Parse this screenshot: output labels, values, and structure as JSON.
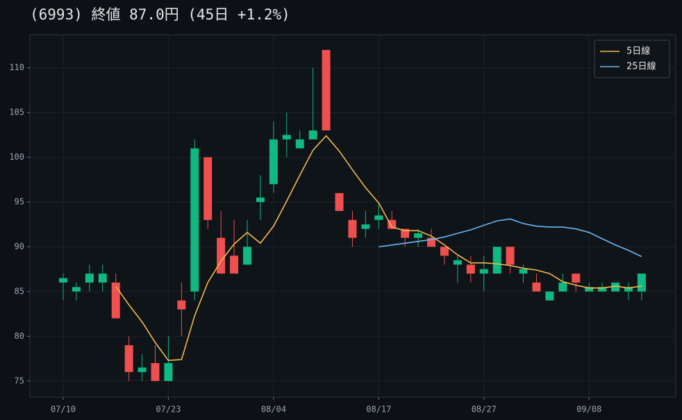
{
  "chart_data": {
    "type": "candlestick",
    "title": "(6993)  終値 87.0円  (45日 +1.2%)",
    "categories": [
      "07/10",
      null,
      null,
      null,
      null,
      null,
      null,
      null,
      "07/23",
      null,
      null,
      null,
      null,
      null,
      null,
      null,
      "08/04",
      null,
      null,
      null,
      null,
      null,
      null,
      null,
      "08/17",
      null,
      null,
      null,
      null,
      null,
      null,
      null,
      "08/27",
      null,
      null,
      null,
      null,
      null,
      null,
      null,
      "09/08",
      null,
      null,
      null,
      null
    ],
    "open": [
      86,
      85,
      86,
      86,
      86,
      79,
      76,
      77,
      75,
      84,
      85,
      100,
      91,
      89,
      88,
      95,
      97,
      102,
      101,
      102,
      112,
      96,
      93,
      92,
      93,
      93,
      92,
      91,
      91,
      90,
      88,
      88,
      87,
      87,
      90,
      87,
      86,
      84,
      85,
      87,
      85,
      85,
      85,
      85,
      85
    ],
    "high": [
      87,
      86,
      88,
      88,
      87,
      80,
      78,
      79,
      80,
      86,
      102,
      100,
      94,
      93,
      93,
      98,
      104,
      105,
      103,
      110,
      112,
      96,
      94,
      94,
      95,
      94,
      92,
      92,
      92,
      90,
      89,
      89,
      89,
      90,
      90,
      88,
      87,
      85,
      87,
      87,
      86,
      86,
      86,
      86,
      87
    ],
    "low": [
      84,
      84,
      85,
      85,
      82,
      75,
      75,
      75,
      75,
      80,
      84,
      92,
      87,
      87,
      88,
      93,
      96,
      100,
      101,
      102,
      103,
      94,
      90,
      91,
      92,
      92,
      90,
      90,
      90,
      88,
      86,
      86,
      85,
      87,
      87,
      86,
      85,
      84,
      85,
      85,
      85,
      85,
      85,
      84,
      84
    ],
    "close": [
      86.5,
      85.5,
      87,
      87,
      82,
      76,
      76.5,
      75,
      77,
      83,
      101,
      93,
      87,
      87,
      90,
      95.5,
      102,
      102.5,
      102,
      103,
      103,
      94,
      91,
      92.5,
      93.5,
      92,
      91,
      91.5,
      90,
      89,
      88.5,
      87,
      87.5,
      90,
      88,
      87.5,
      85,
      85,
      86,
      86,
      85.5,
      85.5,
      86,
      85.5,
      87
    ],
    "up_color": "#10b981",
    "down_color": "#ef4f4f",
    "series": [
      {
        "name": "5日線",
        "color": "#f5b94f",
        "values": [
          null,
          null,
          null,
          null,
          85.6,
          83.5,
          81.6,
          79.3,
          77.3,
          77.4,
          82.3,
          86,
          88.4,
          90.3,
          91.6,
          90.4,
          92.3,
          95.1,
          98,
          100.8,
          102.4,
          100.7,
          98.6,
          96.6,
          94.9,
          92.2,
          91.8,
          91.8,
          91.2,
          90.2,
          89.1,
          88.2,
          88.2,
          88.1,
          87.9,
          87.6,
          87.4,
          87,
          86.1,
          85.7,
          85.4,
          85.4,
          85.6,
          85.4,
          85.6
        ]
      },
      {
        "name": "25日線",
        "color": "#6cb6f2",
        "values": [
          null,
          null,
          null,
          null,
          null,
          null,
          null,
          null,
          null,
          null,
          null,
          null,
          null,
          null,
          null,
          null,
          null,
          null,
          null,
          null,
          null,
          null,
          null,
          null,
          90,
          90.2,
          90.4,
          90.6,
          90.8,
          91.1,
          91.5,
          91.9,
          92.4,
          92.9,
          93.1,
          92.6,
          92.3,
          92.2,
          92.2,
          92,
          91.6,
          90.9,
          90.2,
          89.6,
          88.9
        ]
      }
    ],
    "ylim": [
      73.2,
      113.7
    ],
    "yticks": [
      75,
      80,
      85,
      90,
      95,
      100,
      105,
      110
    ],
    "grid": true,
    "legend": "upper right"
  }
}
